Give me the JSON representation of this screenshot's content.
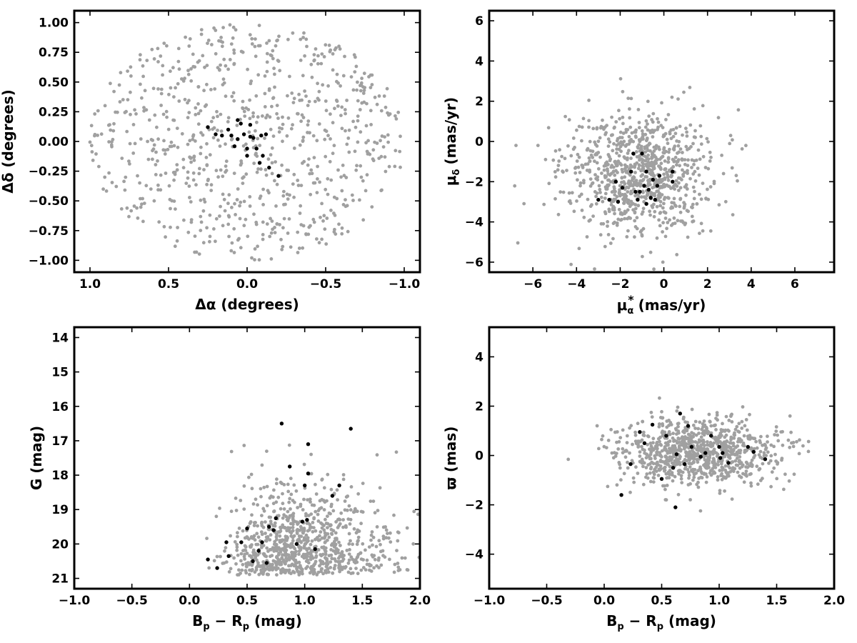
{
  "figure": {
    "colors": {
      "field": "#a0a0a0",
      "member": "#000000",
      "frame": "#000000"
    }
  },
  "chart_data": [
    {
      "id": "sky",
      "type": "scatter",
      "xlabel": "Δα (degrees)",
      "ylabel": "Δδ (degrees)",
      "xlim": [
        1.1,
        -1.1
      ],
      "ylim": [
        -1.1,
        1.1
      ],
      "x_reversed": true,
      "xticks": [
        1.0,
        0.5,
        0.0,
        -0.5,
        -1.0
      ],
      "xtick_labels": [
        "1.0",
        "0.5",
        "0.0",
        "−0.5",
        "−1.0"
      ],
      "yticks": [
        1.0,
        0.75,
        0.5,
        0.25,
        0.0,
        -0.25,
        -0.5,
        -0.75,
        -1.0
      ],
      "ytick_labels": [
        "1.00",
        "0.75",
        "0.50",
        "0.25",
        "0.00",
        "−0.25",
        "−0.50",
        "−0.75",
        "−1.00"
      ],
      "grid": false,
      "field_distribution": {
        "shape": "uniform disk",
        "center": [
          0,
          0
        ],
        "radius": 1.0,
        "approx_count": 800
      },
      "series": [
        {
          "role": "members",
          "points": [
            [
              0.25,
              0.12
            ],
            [
              0.2,
              0.06
            ],
            [
              0.16,
              0.05
            ],
            [
              0.12,
              0.1
            ],
            [
              0.06,
              0.18
            ],
            [
              0.04,
              0.15
            ],
            [
              0.02,
              0.06
            ],
            [
              -0.02,
              0.04
            ],
            [
              -0.04,
              0.03
            ],
            [
              -0.02,
              0.14
            ],
            [
              0.06,
              0.02
            ],
            [
              0.08,
              -0.04
            ],
            [
              0.0,
              -0.06
            ],
            [
              0.0,
              -0.12
            ],
            [
              -0.06,
              -0.06
            ],
            [
              -0.1,
              -0.12
            ],
            [
              -0.08,
              -0.18
            ],
            [
              -0.12,
              0.06
            ],
            [
              -0.14,
              -0.22
            ],
            [
              -0.2,
              -0.29
            ],
            [
              -0.09,
              0.05
            ],
            [
              0.1,
              0.05
            ]
          ]
        }
      ]
    },
    {
      "id": "pm",
      "type": "scatter",
      "xlabel_main": "μ",
      "xlabel_sub": "α",
      "xlabel_sup": "*",
      "xlabel_unit": "(mas/yr)",
      "ylabel_main": "μ",
      "ylabel_sub": "δ",
      "ylabel_unit": "(mas/yr)",
      "xlim": [
        -8,
        7.8
      ],
      "ylim": [
        -6.5,
        6.5
      ],
      "xticks": [
        -6,
        -4,
        -2,
        0,
        2,
        4,
        6
      ],
      "xtick_labels": [
        "−6",
        "−4",
        "−2",
        "0",
        "2",
        "4",
        "6"
      ],
      "yticks": [
        6,
        4,
        2,
        0,
        -2,
        -4,
        -6
      ],
      "ytick_labels": [
        "6",
        "4",
        "2",
        "0",
        "−2",
        "−4",
        "−6"
      ],
      "grid": false,
      "field_distribution": {
        "shape": "cloud",
        "center": [
          -1.2,
          -1.6
        ],
        "spread": [
          1.7,
          1.5
        ],
        "approx_count": 900
      },
      "series": [
        {
          "role": "members",
          "points": [
            [
              -3.0,
              -2.9
            ],
            [
              -2.5,
              -2.9
            ],
            [
              -2.2,
              -2.0
            ],
            [
              -2.1,
              -3.0
            ],
            [
              -1.9,
              -2.3
            ],
            [
              -1.5,
              -1.5
            ],
            [
              -1.4,
              -0.6
            ],
            [
              -1.3,
              -2.5
            ],
            [
              -1.2,
              -2.9
            ],
            [
              -1.0,
              -0.6
            ],
            [
              -0.9,
              -2.2
            ],
            [
              -0.8,
              -3.1
            ],
            [
              -0.8,
              -1.5
            ],
            [
              -0.6,
              -2.8
            ],
            [
              -0.5,
              -1.9
            ],
            [
              -0.4,
              -2.9
            ],
            [
              -0.3,
              -2.2
            ],
            [
              -0.2,
              -1.7
            ],
            [
              0.4,
              -1.5
            ],
            [
              0.4,
              -2.0
            ],
            [
              -1.1,
              -2.5
            ],
            [
              -0.7,
              -2.4
            ]
          ]
        }
      ]
    },
    {
      "id": "cmd",
      "type": "scatter",
      "xlabel_main": "B",
      "xlabel_sub1": "p",
      "xlabel_mid": " − R",
      "xlabel_sub2": "p",
      "xlabel_unit": " (mag)",
      "ylabel": "G (mag)",
      "xlim": [
        -1.0,
        2.0
      ],
      "ylim": [
        21.3,
        13.7
      ],
      "y_reversed": true,
      "xticks": [
        -1.0,
        -0.5,
        0.0,
        0.5,
        1.0,
        1.5,
        2.0
      ],
      "xtick_labels": [
        "−1.0",
        "−0.5",
        "0.0",
        "0.5",
        "1.0",
        "1.5",
        "2.0"
      ],
      "yticks": [
        21,
        20,
        19,
        18,
        17,
        16,
        15,
        14
      ],
      "ytick_labels": [
        "21",
        "20",
        "19",
        "18",
        "17",
        "16",
        "15",
        "14"
      ],
      "grid": false,
      "field_distribution": {
        "shape": "cloud",
        "center": [
          0.75,
          19.8
        ],
        "spread": [
          0.3,
          0.9
        ],
        "approx_count": 900
      },
      "series": [
        {
          "role": "members",
          "points": [
            [
              0.16,
              20.45
            ],
            [
              0.24,
              20.7
            ],
            [
              0.34,
              20.35
            ],
            [
              0.32,
              19.95
            ],
            [
              0.45,
              19.95
            ],
            [
              0.5,
              19.55
            ],
            [
              0.55,
              20.5
            ],
            [
              0.6,
              20.2
            ],
            [
              0.63,
              19.95
            ],
            [
              0.67,
              20.55
            ],
            [
              0.69,
              19.5
            ],
            [
              0.73,
              19.6
            ],
            [
              0.75,
              19.25
            ],
            [
              0.8,
              16.5
            ],
            [
              0.87,
              17.75
            ],
            [
              0.93,
              20.0
            ],
            [
              0.98,
              19.35
            ],
            [
              1.0,
              18.3
            ],
            [
              1.02,
              19.3
            ],
            [
              1.03,
              17.95
            ],
            [
              1.03,
              17.1
            ],
            [
              1.09,
              20.15
            ],
            [
              1.24,
              18.6
            ],
            [
              1.3,
              18.3
            ],
            [
              1.4,
              16.65
            ]
          ]
        }
      ]
    },
    {
      "id": "plx",
      "type": "scatter",
      "xlabel_main": "B",
      "xlabel_sub1": "p",
      "xlabel_mid": " − R",
      "xlabel_sub2": "p",
      "xlabel_unit": " (mag)",
      "ylabel": "ϖ (mas)",
      "xlim": [
        -1.0,
        2.0
      ],
      "ylim": [
        -5.4,
        5.2
      ],
      "xticks": [
        -1.0,
        -0.5,
        0.0,
        0.5,
        1.0,
        1.5,
        2.0
      ],
      "xtick_labels": [
        "−1.0",
        "−0.5",
        "0.0",
        "0.5",
        "1.0",
        "1.5",
        "2.0"
      ],
      "yticks": [
        4,
        2,
        0,
        -2,
        -4
      ],
      "ytick_labels": [
        "4",
        "2",
        "0",
        "−2",
        "−4"
      ],
      "grid": false,
      "field_distribution": {
        "shape": "cloud",
        "center": [
          0.8,
          0.1
        ],
        "spread": [
          0.35,
          0.7
        ],
        "approx_count": 900
      },
      "series": [
        {
          "role": "members",
          "points": [
            [
              0.15,
              -1.6
            ],
            [
              0.23,
              -0.35
            ],
            [
              0.31,
              0.95
            ],
            [
              0.35,
              0.5
            ],
            [
              0.42,
              1.25
            ],
            [
              0.5,
              -0.95
            ],
            [
              0.54,
              0.8
            ],
            [
              0.6,
              -0.5
            ],
            [
              0.62,
              -2.1
            ],
            [
              0.63,
              0.05
            ],
            [
              0.66,
              1.7
            ],
            [
              0.7,
              -0.35
            ],
            [
              0.73,
              1.2
            ],
            [
              0.76,
              0.35
            ],
            [
              0.84,
              -0.05
            ],
            [
              0.88,
              0.1
            ],
            [
              0.93,
              0.8
            ],
            [
              1.0,
              0.35
            ],
            [
              1.01,
              -0.1
            ],
            [
              1.03,
              0.1
            ],
            [
              1.08,
              -0.3
            ],
            [
              1.25,
              0.35
            ],
            [
              1.3,
              0.15
            ],
            [
              1.4,
              -0.15
            ]
          ]
        }
      ]
    }
  ]
}
